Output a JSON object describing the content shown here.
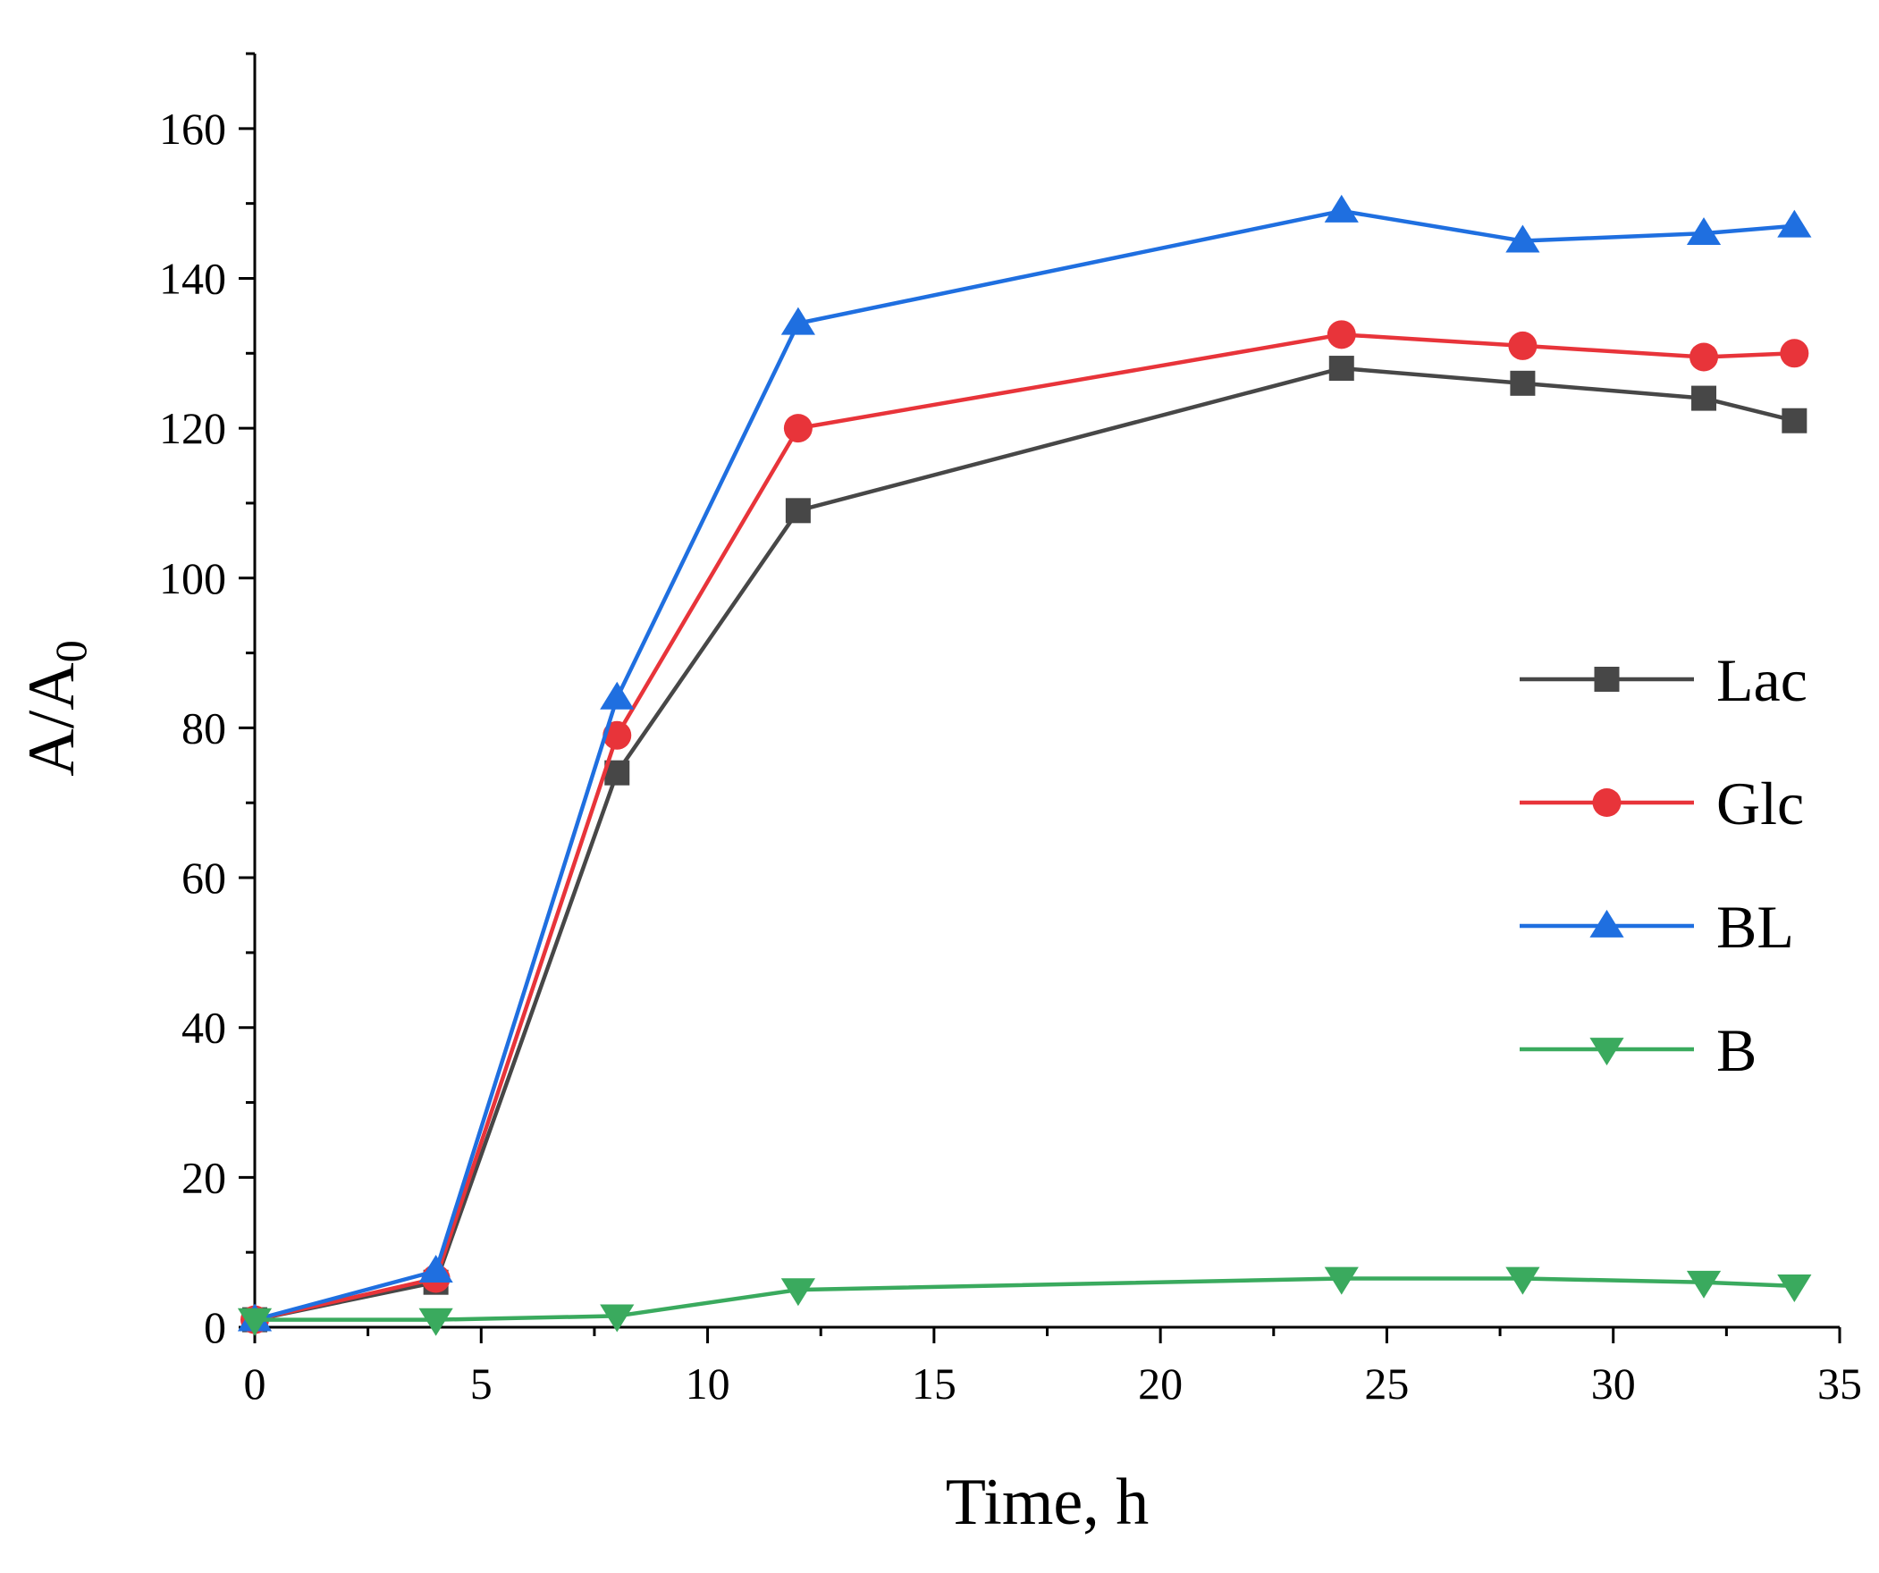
{
  "chart_data": {
    "type": "line",
    "title": "",
    "xlabel": "Time, h",
    "ylabel": "A/A",
    "ylabel_subscript": "0",
    "xlim": [
      0,
      35
    ],
    "ylim": [
      0,
      170
    ],
    "x_ticks": [
      0,
      5,
      10,
      15,
      20,
      25,
      30,
      35
    ],
    "y_ticks": [
      0,
      20,
      40,
      60,
      80,
      100,
      120,
      140,
      160
    ],
    "grid": false,
    "legend_position": "right",
    "series": [
      {
        "name": "Lac",
        "color": "#474747",
        "marker": "square",
        "x": [
          0,
          4,
          8,
          12,
          24,
          28,
          32,
          34
        ],
        "y": [
          1,
          6,
          74,
          109,
          128,
          126,
          124,
          121
        ]
      },
      {
        "name": "Glc",
        "color": "#e8343a",
        "marker": "circle",
        "x": [
          0,
          4,
          8,
          12,
          24,
          28,
          32,
          34
        ],
        "y": [
          1,
          6.5,
          79,
          120,
          132.5,
          131,
          129.5,
          130
        ]
      },
      {
        "name": "BL",
        "color": "#1f6fe0",
        "marker": "triangle-up",
        "x": [
          0,
          4,
          8,
          12,
          24,
          28,
          32,
          34
        ],
        "y": [
          1,
          7.5,
          84,
          134,
          149,
          145,
          146,
          147
        ]
      },
      {
        "name": "B",
        "color": "#3aaa5e",
        "marker": "triangle-down",
        "x": [
          0,
          4,
          8,
          12,
          24,
          28,
          32,
          34
        ],
        "y": [
          1,
          1,
          1.5,
          5,
          6.5,
          6.5,
          6,
          5.5
        ]
      }
    ]
  }
}
